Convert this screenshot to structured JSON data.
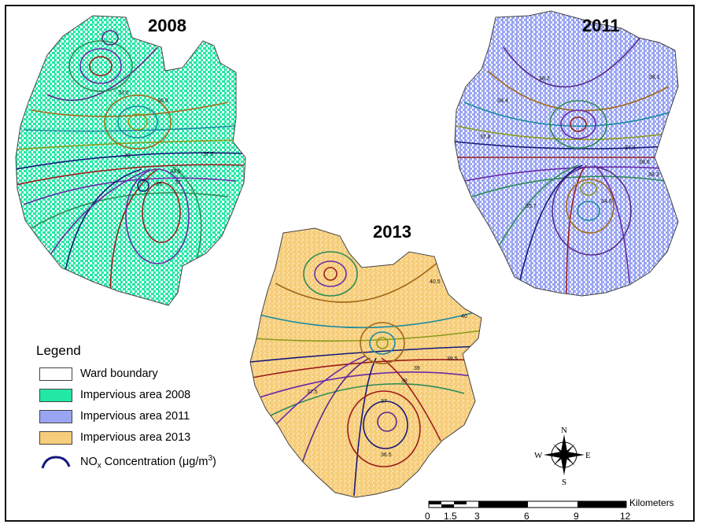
{
  "maps": [
    {
      "year": "2008",
      "impervious_color": "#22e8a6",
      "contour_labels": [
        "37.5",
        "34.5",
        "37",
        "35",
        "39",
        "36.5",
        "33.5"
      ]
    },
    {
      "year": "2011",
      "impervious_color": "#9aa5f2",
      "contour_labels": [
        "38.2",
        "38.1",
        "38.4",
        "37.8",
        "37.2",
        "38.6",
        "38.3",
        "35.7",
        "34.6"
      ]
    },
    {
      "year": "2013",
      "impervious_color": "#f6cd7a",
      "contour_labels": [
        "40.5",
        "40",
        "39.5",
        "39",
        "38",
        "37",
        "37.5",
        "36.5"
      ]
    }
  ],
  "legend": {
    "title": "Legend",
    "items": [
      {
        "label": "Ward boundary",
        "color": "#ffffff",
        "kind": "box"
      },
      {
        "label": "Impervious area 2008",
        "color": "#22e8a6",
        "kind": "box"
      },
      {
        "label": "Impervious area 2011",
        "color": "#9aa5f2",
        "kind": "box"
      },
      {
        "label": "Impervious area 2013",
        "color": "#f6cd7a",
        "kind": "box"
      },
      {
        "label": "NOx Concentration (μg/m3)",
        "color": "#15197a",
        "kind": "line"
      }
    ],
    "nox": {
      "prefix": "NO",
      "sub": "x",
      "middle": " Concentration (μg/m",
      "sup": "3",
      "suffix": ")"
    }
  },
  "compass": {
    "n": "N",
    "s": "S",
    "e": "E",
    "w": "W"
  },
  "scale_bar": {
    "unit": "Kilometers",
    "ticks": [
      "0",
      "1.5",
      "3",
      "6",
      "9",
      "12"
    ]
  },
  "contour_colors": [
    "#15197a",
    "#9b1c1c",
    "#6a2aa8",
    "#2e8b57",
    "#8a9a1a",
    "#1a8aa0",
    "#a36a1a",
    "#5a2a8a"
  ]
}
